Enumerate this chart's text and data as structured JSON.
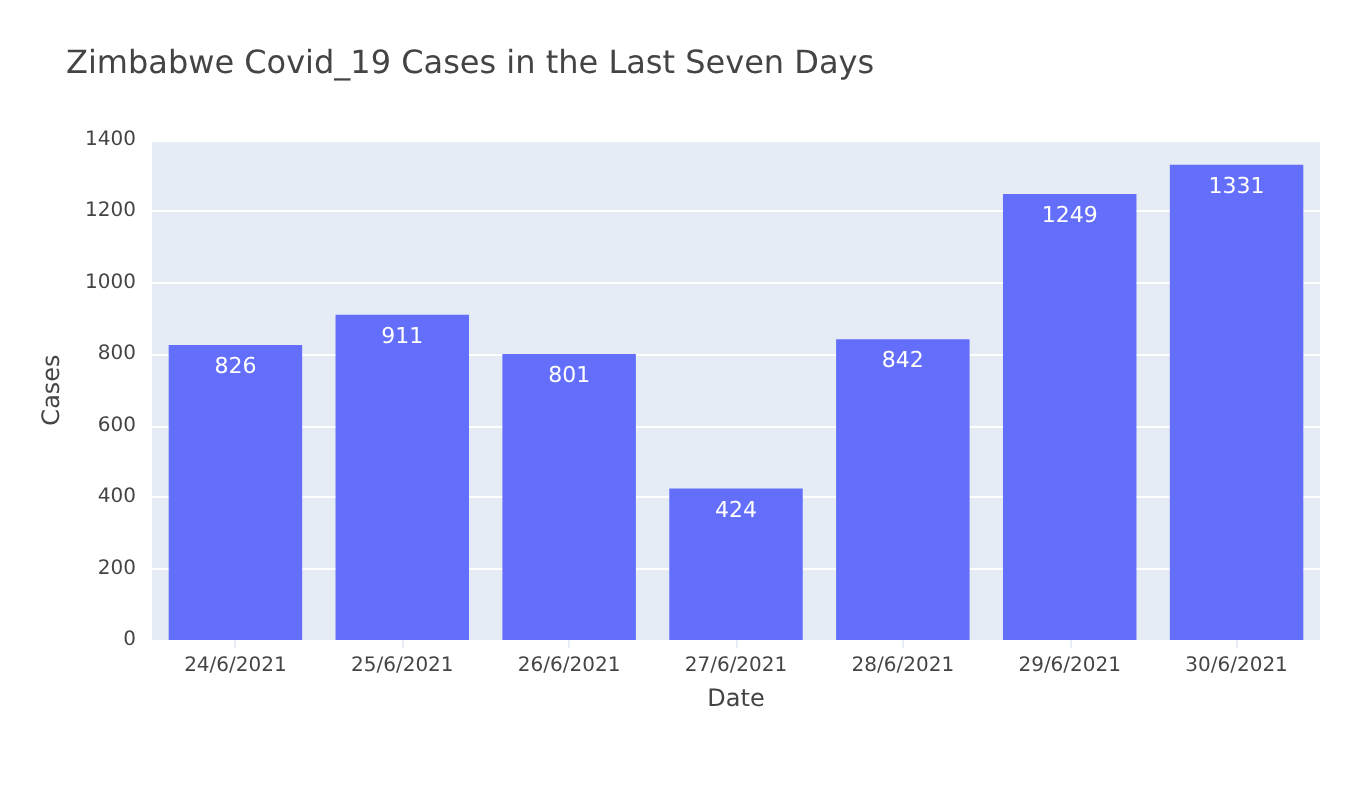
{
  "chart_data": {
    "type": "bar",
    "title": "Zimbabwe Covid_19 Cases in the Last Seven Days",
    "xlabel": "Date",
    "ylabel": "Cases",
    "categories": [
      "24/6/2021",
      "25/6/2021",
      "26/6/2021",
      "27/6/2021",
      "28/6/2021",
      "29/6/2021",
      "30/6/2021"
    ],
    "values": [
      826,
      911,
      801,
      424,
      842,
      1249,
      1331
    ],
    "color": "#636efa",
    "ylim": [
      0,
      1400
    ],
    "yticks": [
      0,
      200,
      400,
      600,
      800,
      1000,
      1200,
      1400
    ],
    "grid": "y",
    "data_labels": true
  }
}
